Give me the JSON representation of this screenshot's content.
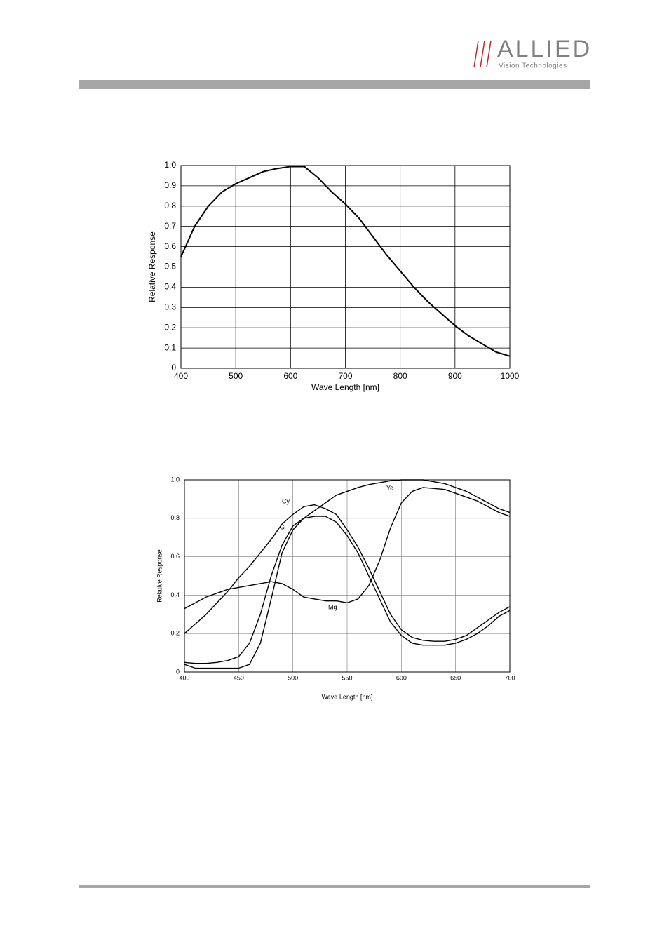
{
  "header": {
    "logo": "ALLIED",
    "tagline": "Vision Technologies"
  },
  "chart_data": [
    {
      "type": "line",
      "x_label": "Wave Length [nm]",
      "y_label": "Relative Response",
      "color": "#000000",
      "grid": true,
      "x": [
        400,
        425,
        450,
        475,
        500,
        525,
        550,
        575,
        600,
        625,
        650,
        675,
        700,
        725,
        750,
        775,
        800,
        825,
        850,
        875,
        900,
        925,
        950,
        975,
        1000
      ],
      "values": [
        0.55,
        0.7,
        0.8,
        0.87,
        0.91,
        0.94,
        0.97,
        0.985,
        0.995,
        0.995,
        0.94,
        0.87,
        0.81,
        0.74,
        0.65,
        0.56,
        0.48,
        0.4,
        0.33,
        0.27,
        0.21,
        0.16,
        0.12,
        0.08,
        0.06
      ],
      "xlim": [
        400,
        1000
      ],
      "xticks": [
        400,
        500,
        600,
        700,
        800,
        900,
        1000
      ],
      "ylim": [
        0,
        1
      ],
      "yticks": [
        0,
        0.1,
        0.2,
        0.3,
        0.4,
        0.5,
        0.6,
        0.7,
        0.8,
        0.9,
        {
          "value": 1,
          "label": "1.0"
        }
      ]
    },
    {
      "type": "line",
      "x_label": "Wave Length [nm]",
      "y_label": "Relative Response",
      "grid": true,
      "x": [
        400,
        410,
        420,
        430,
        440,
        450,
        460,
        470,
        480,
        490,
        500,
        510,
        520,
        530,
        540,
        550,
        560,
        570,
        580,
        590,
        600,
        610,
        620,
        630,
        640,
        650,
        660,
        670,
        680,
        690,
        700
      ],
      "series": [
        {
          "name": "Cy",
          "color": "#000000",
          "values": [
            0.2,
            0.25,
            0.3,
            0.36,
            0.42,
            0.49,
            0.55,
            0.62,
            0.69,
            0.77,
            0.82,
            0.86,
            0.87,
            0.85,
            0.82,
            0.74,
            0.65,
            0.54,
            0.42,
            0.3,
            0.22,
            0.18,
            0.165,
            0.16,
            0.16,
            0.17,
            0.19,
            0.23,
            0.27,
            0.31,
            0.34
          ]
        },
        {
          "name": "G",
          "color": "#000000",
          "values": [
            0.05,
            0.045,
            0.045,
            0.05,
            0.06,
            0.08,
            0.15,
            0.3,
            0.5,
            0.66,
            0.76,
            0.8,
            0.81,
            0.81,
            0.78,
            0.71,
            0.62,
            0.5,
            0.38,
            0.26,
            0.19,
            0.15,
            0.14,
            0.14,
            0.14,
            0.15,
            0.17,
            0.2,
            0.24,
            0.29,
            0.32
          ]
        },
        {
          "name": "Ye",
          "color": "#000000",
          "values": [
            0.04,
            0.02,
            0.02,
            0.02,
            0.02,
            0.02,
            0.04,
            0.15,
            0.38,
            0.62,
            0.74,
            0.8,
            0.84,
            0.88,
            0.92,
            0.94,
            0.96,
            0.975,
            0.985,
            0.995,
            1.0,
            1.0,
            1.0,
            0.99,
            0.98,
            0.96,
            0.94,
            0.91,
            0.88,
            0.85,
            0.83
          ]
        },
        {
          "name": "Mg",
          "color": "#000000",
          "values": [
            0.33,
            0.36,
            0.39,
            0.41,
            0.43,
            0.44,
            0.45,
            0.46,
            0.47,
            0.46,
            0.43,
            0.39,
            0.38,
            0.37,
            0.37,
            0.36,
            0.38,
            0.45,
            0.58,
            0.75,
            0.88,
            0.94,
            0.96,
            0.955,
            0.95,
            0.93,
            0.91,
            0.89,
            0.86,
            0.83,
            0.81
          ]
        }
      ],
      "xlim": [
        400,
        700
      ],
      "xticks": [
        400,
        450,
        500,
        550,
        600,
        650,
        700
      ],
      "ylim": [
        0,
        1
      ],
      "yticks": [
        0,
        0.2,
        0.4,
        0.6,
        0.8,
        {
          "value": 1,
          "label": "1.0"
        }
      ]
    }
  ]
}
